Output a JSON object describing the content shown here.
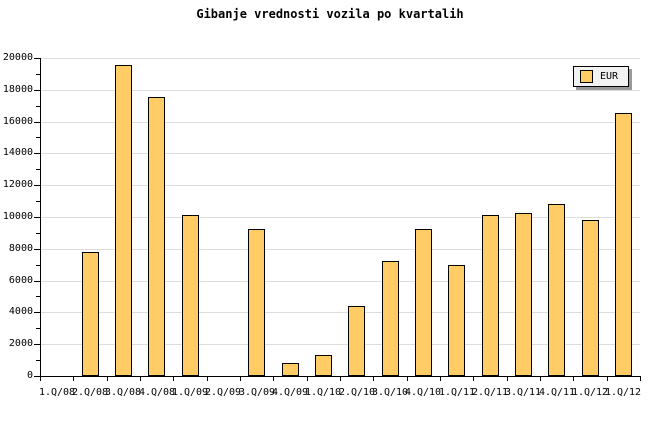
{
  "page": {
    "background": "#FFFFFF"
  },
  "chart_data": {
    "type": "bar",
    "title": "Gibanje vrednosti vozila po kvartalih",
    "categories": [
      "1.Q/08",
      "2.Q/08",
      "3.Q/08",
      "4.Q/08",
      "1.Q/09",
      "2.Q/09",
      "3.Q/09",
      "4.Q/09",
      "1.Q/10",
      "2.Q/10",
      "3.Q/10",
      "4.Q/10",
      "1.Q/11",
      "2.Q/11",
      "3.Q/11",
      "4.Q/11",
      "1.Q/12",
      "1.Q/12"
    ],
    "series": [
      {
        "name": "EUR",
        "values": [
          null,
          7800,
          19550,
          17550,
          10100,
          null,
          9250,
          800,
          1350,
          4400,
          7250,
          9250,
          7000,
          10150,
          10250,
          10800,
          9800,
          16550
        ]
      }
    ],
    "ylabel": "",
    "xlabel": "",
    "ylim": [
      0,
      20000
    ],
    "ytick_major_step": 2000,
    "ytick_minor_step": 1000,
    "ytick_labels": [
      "0",
      "2000",
      "4000",
      "6000",
      "8000",
      "10000",
      "12000",
      "14000",
      "16000",
      "18000",
      "20000"
    ],
    "grid": "horizontal",
    "legend_position": "top-right",
    "legend_entries": [
      "EUR"
    ],
    "colors": {
      "bar_fill": "#FFCC66",
      "bar_border": "#000000",
      "grid": "#DDDDDD",
      "axis": "#000000",
      "text": "#000000",
      "legend_bg": "#F2F2F2",
      "legend_border": "#000000",
      "legend_shadow": "#999999"
    }
  }
}
